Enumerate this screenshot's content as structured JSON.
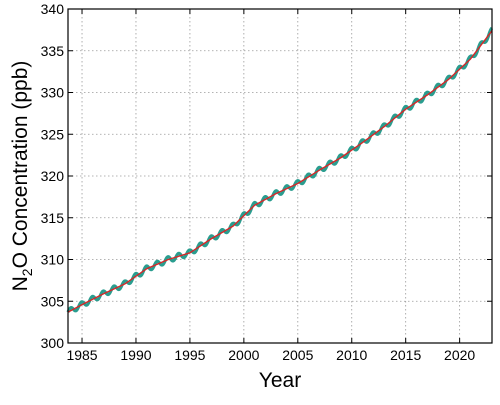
{
  "chart_data": {
    "type": "line",
    "title": "",
    "xlabel": "Year",
    "ylabel": {
      "prefix": "N",
      "subscript": "2",
      "suffix": "O Concentration (ppb)"
    },
    "xlim": [
      1983.7,
      2023.0
    ],
    "ylim": [
      300,
      340
    ],
    "x_ticks": [
      1985,
      1990,
      1995,
      2000,
      2005,
      2010,
      2015,
      2020
    ],
    "y_ticks": [
      300,
      305,
      310,
      315,
      320,
      325,
      330,
      335,
      340
    ],
    "grid": true,
    "series": [
      {
        "style": "seasonal",
        "color": "#2a9d8f",
        "seasonal_amplitude": 0.35,
        "x": [
          1983.7,
          1985,
          1987,
          1989,
          1991,
          1993,
          1995,
          1997,
          1999,
          2001,
          2003,
          2005,
          2007,
          2009,
          2011,
          2013,
          2015,
          2017,
          2019,
          2021,
          2023
        ],
        "values": [
          303.7,
          304.6,
          305.9,
          307.1,
          308.9,
          310.0,
          310.8,
          312.5,
          314.0,
          316.5,
          317.9,
          319.1,
          320.7,
          322.2,
          324.0,
          325.9,
          328.0,
          329.7,
          331.6,
          334.0,
          337.4
        ]
      },
      {
        "style": "trend",
        "color": "#d62728",
        "x": [
          1983.7,
          1985,
          1987,
          1989,
          1991,
          1993,
          1995,
          1997,
          1999,
          2001,
          2003,
          2005,
          2007,
          2009,
          2011,
          2013,
          2015,
          2017,
          2019,
          2021,
          2023
        ],
        "values": [
          303.7,
          304.6,
          305.9,
          307.1,
          308.9,
          310.0,
          310.8,
          312.5,
          314.0,
          316.5,
          317.9,
          319.1,
          320.7,
          322.2,
          324.0,
          325.9,
          328.0,
          329.7,
          331.6,
          334.0,
          337.4
        ]
      }
    ]
  }
}
